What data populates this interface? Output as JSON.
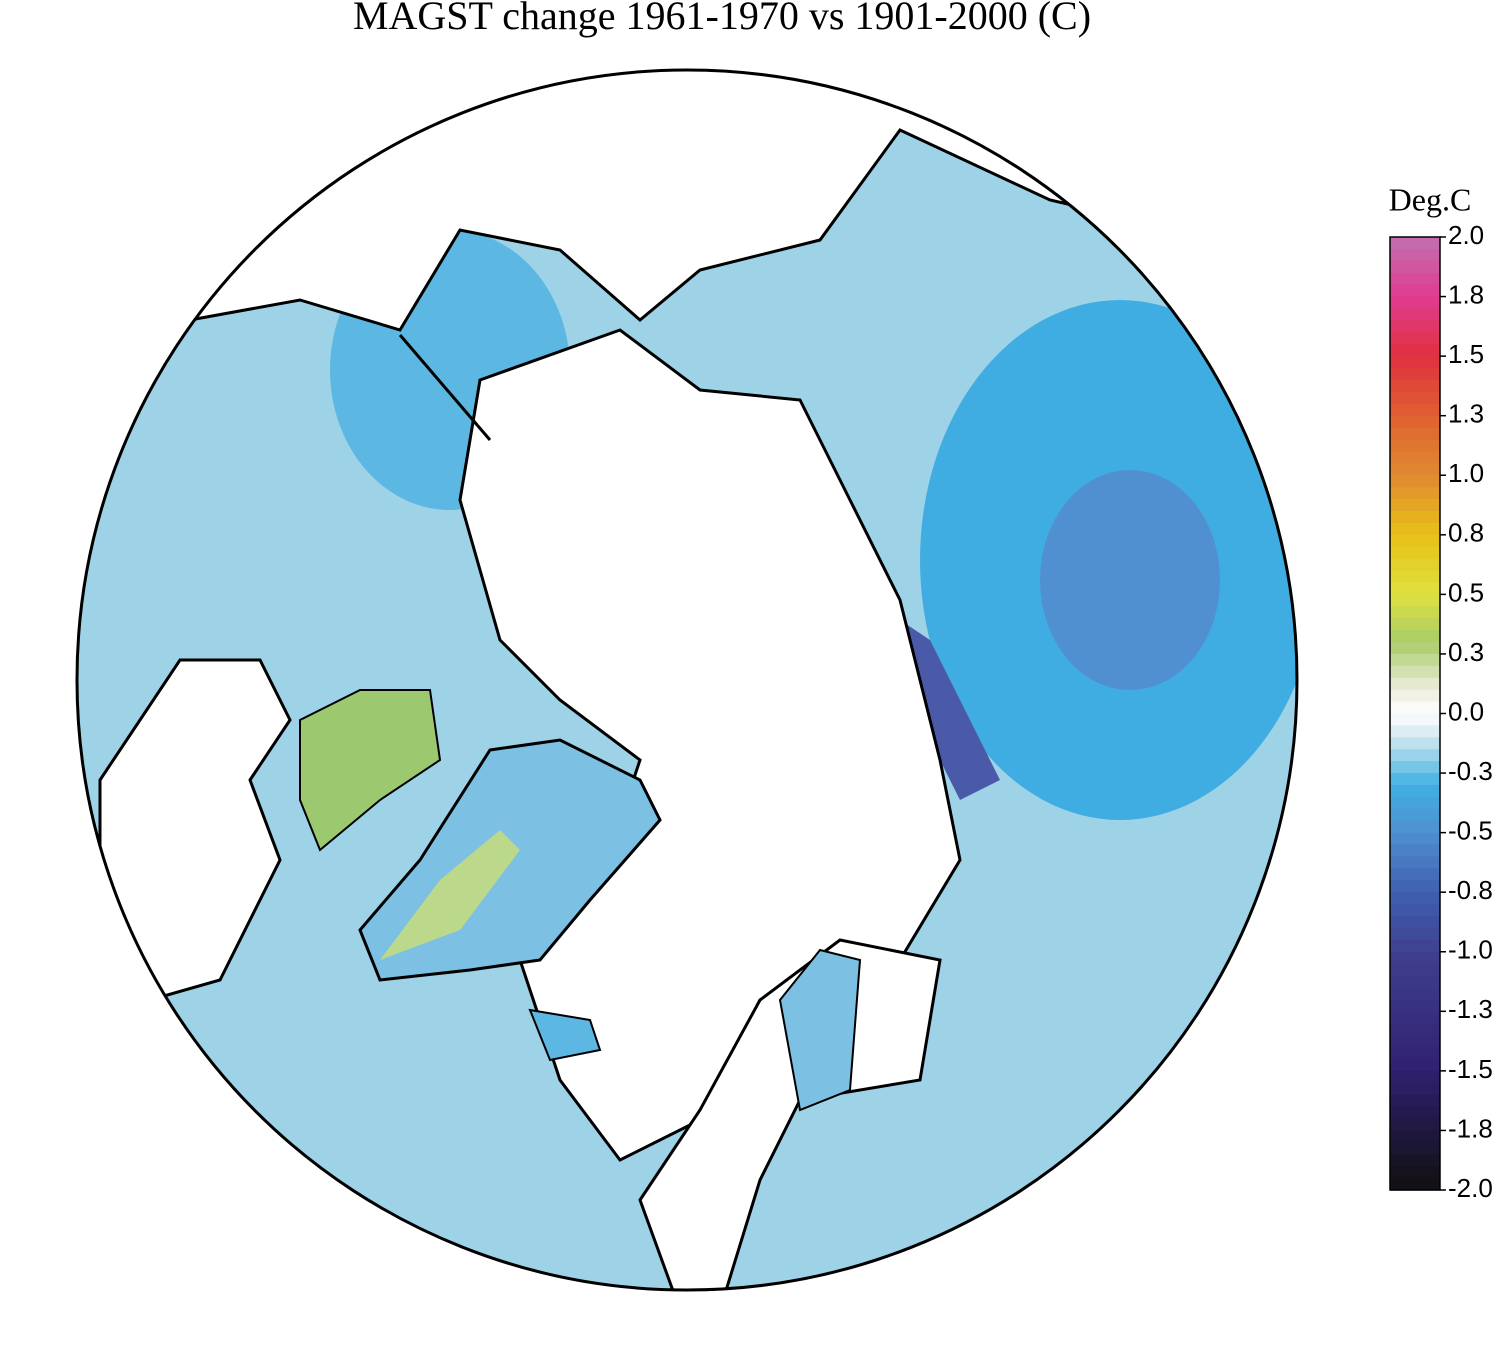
{
  "title": "MAGST change 1961-1970 vs 1901-2000 (C)",
  "colorbar": {
    "title": "Deg.C",
    "lim": [
      -2,
      2
    ],
    "ticks": [
      {
        "value": 2,
        "label": "2.0"
      },
      {
        "value": 1.75,
        "label": "1.8"
      },
      {
        "value": 1.5,
        "label": "1.5"
      },
      {
        "value": 1.25,
        "label": "1.3"
      },
      {
        "value": 1,
        "label": "1.0"
      },
      {
        "value": 0.75,
        "label": "0.8"
      },
      {
        "value": 0.5,
        "label": "0.5"
      },
      {
        "value": 0.25,
        "label": "0.3"
      },
      {
        "value": 0,
        "label": "0.0"
      },
      {
        "value": -0.25,
        "label": "-0.3"
      },
      {
        "value": -0.5,
        "label": "-0.5"
      },
      {
        "value": -0.75,
        "label": "-0.8"
      },
      {
        "value": -1,
        "label": "-1.0"
      },
      {
        "value": -1.25,
        "label": "-1.3"
      },
      {
        "value": -1.5,
        "label": "-1.5"
      },
      {
        "value": -1.75,
        "label": "-1.8"
      },
      {
        "value": -2,
        "label": "-2.0"
      }
    ],
    "colors": [
      [
        2,
        "#c070b0"
      ],
      [
        1.75,
        "#e03c90"
      ],
      [
        1.5,
        "#e03040"
      ],
      [
        1.25,
        "#e06030"
      ],
      [
        1,
        "#e08a30"
      ],
      [
        0.75,
        "#e8c018"
      ],
      [
        0.5,
        "#e0e040"
      ],
      [
        0.3,
        "#a8cc68"
      ],
      [
        0.1,
        "#eceedc"
      ],
      [
        0,
        "#ffffff"
      ],
      [
        -0.1,
        "#d0e8f0"
      ],
      [
        -0.3,
        "#40b0e2"
      ],
      [
        -0.5,
        "#5090d0"
      ],
      [
        -0.75,
        "#4060b0"
      ],
      [
        -1,
        "#404090"
      ],
      [
        -1.5,
        "#302070"
      ],
      [
        -2,
        "#101010"
      ]
    ]
  }
}
